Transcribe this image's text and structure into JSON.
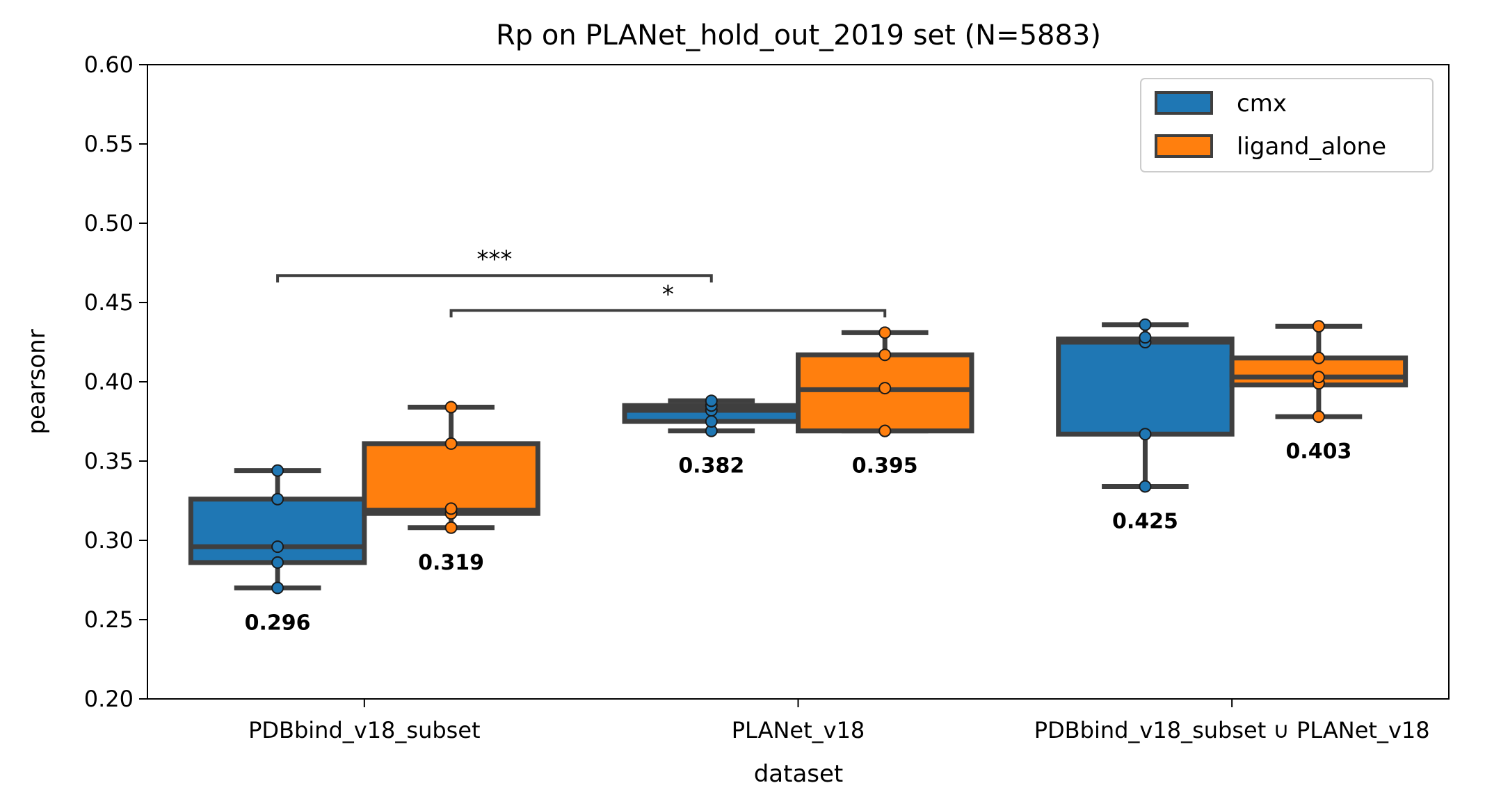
{
  "chart_data": {
    "type": "box",
    "title": "Rp on PLANet_hold_out_2019 set (N=5883)",
    "xlabel": "dataset",
    "ylabel": "pearsonr",
    "ylim": [
      0.2,
      0.6
    ],
    "yticks": [
      "0.20",
      "0.25",
      "0.30",
      "0.35",
      "0.40",
      "0.45",
      "0.50",
      "0.55",
      "0.60"
    ],
    "categories": [
      "PDBbind_v18_subset",
      "PLANet_v18",
      "PDBbind_v18_subset ∪ PLANet_v18"
    ],
    "legend": {
      "position": "upper-right"
    },
    "colors": {
      "cmx": "#1f77b4",
      "ligand_alone": "#ff7f0e",
      "edge": "#3f3f3f"
    },
    "series": [
      {
        "name": "cmx",
        "boxes": [
          {
            "whisker_low": 0.27,
            "q1": 0.286,
            "median": 0.296,
            "q3": 0.326,
            "whisker_high": 0.344,
            "points": [
              0.27,
              0.286,
              0.296,
              0.326,
              0.344
            ],
            "median_label": "0.296"
          },
          {
            "whisker_low": 0.369,
            "q1": 0.375,
            "median": 0.382,
            "q3": 0.385,
            "whisker_high": 0.388,
            "points": [
              0.369,
              0.375,
              0.382,
              0.385,
              0.388
            ],
            "median_label": "0.382"
          },
          {
            "whisker_low": 0.334,
            "q1": 0.367,
            "median": 0.425,
            "q3": 0.427,
            "whisker_high": 0.436,
            "points": [
              0.334,
              0.367,
              0.425,
              0.428,
              0.436
            ],
            "median_label": "0.425"
          }
        ]
      },
      {
        "name": "ligand_alone",
        "boxes": [
          {
            "whisker_low": 0.308,
            "q1": 0.317,
            "median": 0.319,
            "q3": 0.361,
            "whisker_high": 0.384,
            "points": [
              0.308,
              0.317,
              0.32,
              0.361,
              0.384
            ],
            "median_label": "0.319"
          },
          {
            "whisker_low": 0.369,
            "q1": 0.369,
            "median": 0.395,
            "q3": 0.417,
            "whisker_high": 0.431,
            "points": [
              0.369,
              0.369,
              0.396,
              0.417,
              0.431
            ],
            "median_label": "0.395"
          },
          {
            "whisker_low": 0.378,
            "q1": 0.398,
            "median": 0.403,
            "q3": 0.415,
            "whisker_high": 0.435,
            "points": [
              0.378,
              0.399,
              0.403,
              0.415,
              0.435
            ],
            "median_label": "0.403"
          }
        ]
      }
    ],
    "annotations": [
      {
        "text": "***",
        "from": {
          "category": 0,
          "series": 0
        },
        "to": {
          "category": 1,
          "series": 0
        },
        "y": 0.467
      },
      {
        "text": "*",
        "from": {
          "category": 0,
          "series": 1
        },
        "to": {
          "category": 1,
          "series": 1
        },
        "y": 0.445
      }
    ]
  }
}
